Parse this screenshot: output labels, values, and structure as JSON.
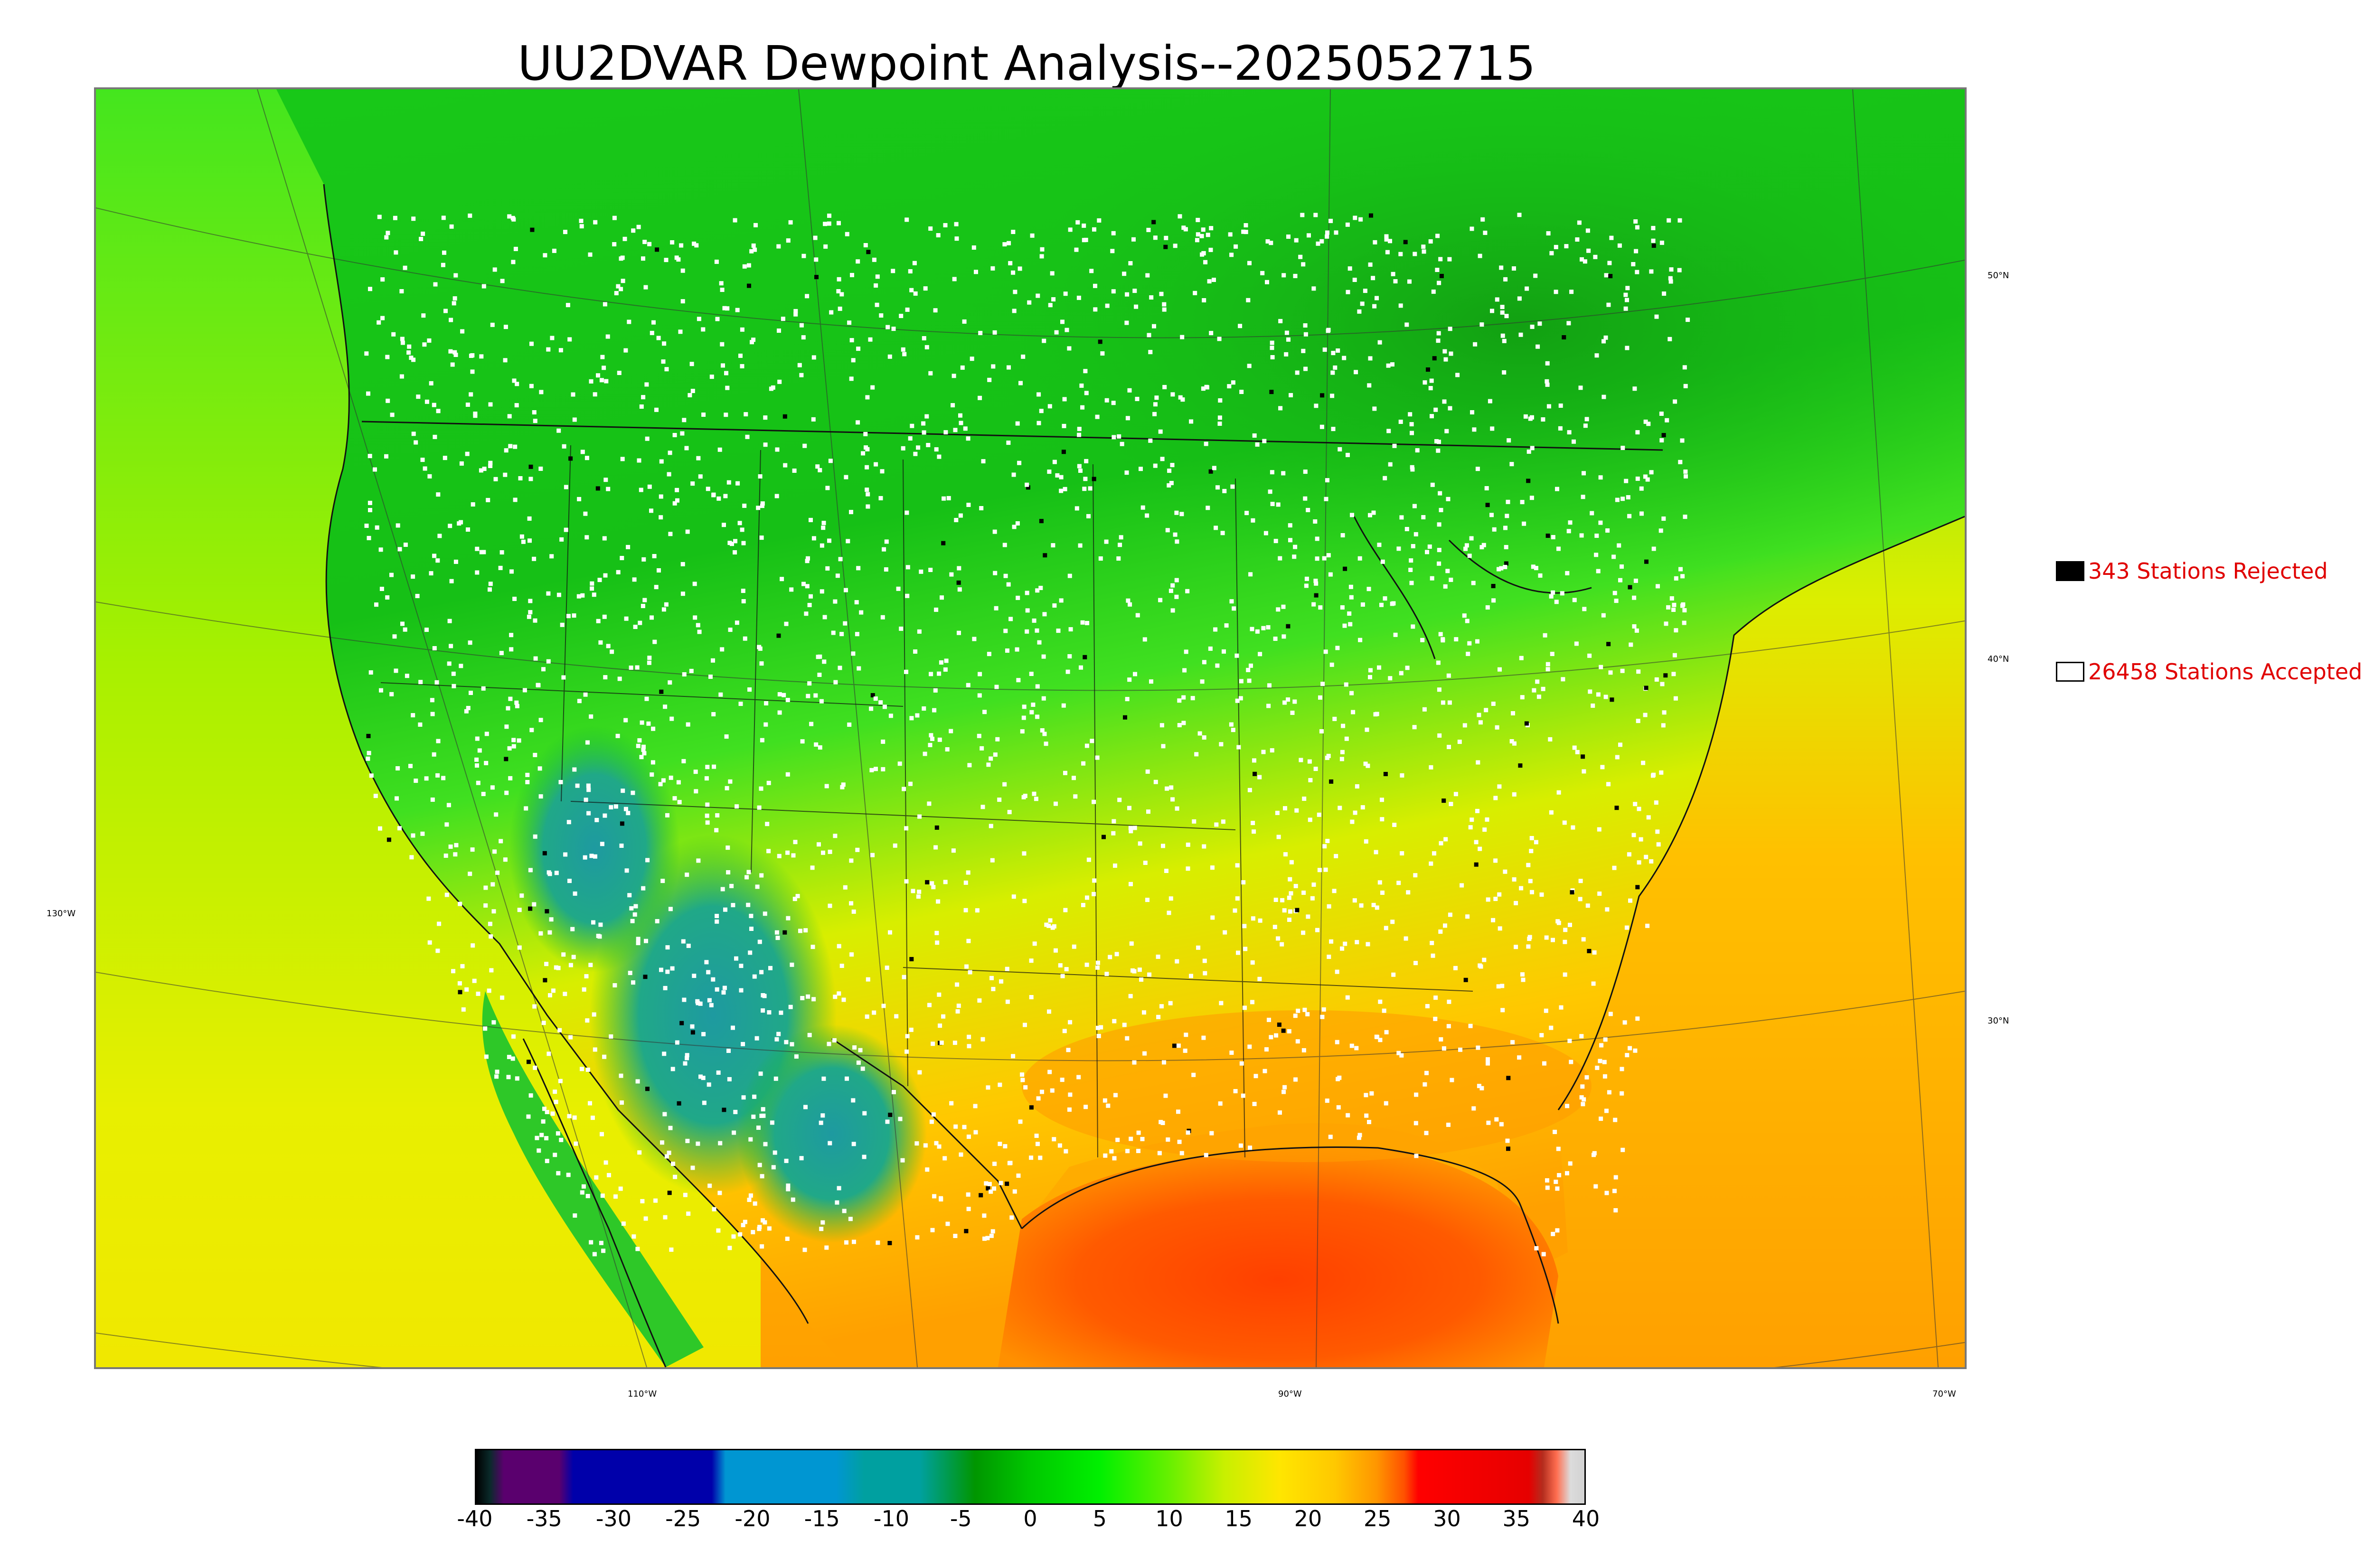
{
  "title": "UU2DVAR Dewpoint Analysis--2025052715",
  "legend": {
    "rejected_label": "343 Stations Rejected",
    "rejected_color": "#000000",
    "accepted_label": "26458 Stations Accepted",
    "accepted_color": "#ffffff"
  },
  "lat_labels": [
    "50°N",
    "40°N",
    "30°N"
  ],
  "lon_labels": [
    "130°W",
    "110°W",
    "90°W",
    "70°W"
  ],
  "colorbar": {
    "ticks": [
      "-40",
      "-35",
      "-30",
      "-25",
      "-20",
      "-15",
      "-10",
      "-5",
      "0",
      "5",
      "10",
      "15",
      "20",
      "25",
      "30",
      "35",
      "40"
    ],
    "range": [
      -40,
      40
    ],
    "stops": [
      {
        "value": -40,
        "color": "#000000"
      },
      {
        "value": -39,
        "color": "#0a2a2a"
      },
      {
        "value": -38,
        "color": "#5a006e"
      },
      {
        "value": -34,
        "color": "#5a006e"
      },
      {
        "value": -33,
        "color": "#0000aa"
      },
      {
        "value": -23,
        "color": "#0000aa"
      },
      {
        "value": -22,
        "color": "#0096d2"
      },
      {
        "value": -14,
        "color": "#0096d2"
      },
      {
        "value": -12,
        "color": "#00a0a0"
      },
      {
        "value": -8,
        "color": "#00a0a0"
      },
      {
        "value": -4,
        "color": "#009600"
      },
      {
        "value": 0,
        "color": "#00c800"
      },
      {
        "value": 5,
        "color": "#00f000"
      },
      {
        "value": 10,
        "color": "#66f000"
      },
      {
        "value": 14,
        "color": "#c8f000"
      },
      {
        "value": 18,
        "color": "#ffe600"
      },
      {
        "value": 22,
        "color": "#ffc800"
      },
      {
        "value": 25,
        "color": "#ff9600"
      },
      {
        "value": 27,
        "color": "#ff5000"
      },
      {
        "value": 28,
        "color": "#ff0000"
      },
      {
        "value": 36,
        "color": "#e60000"
      },
      {
        "value": 37,
        "color": "#b42d1e"
      },
      {
        "value": 38,
        "color": "#ff6e50"
      },
      {
        "value": 39,
        "color": "#dcdcdc"
      },
      {
        "value": 40,
        "color": "#d2d2d2"
      }
    ]
  }
}
